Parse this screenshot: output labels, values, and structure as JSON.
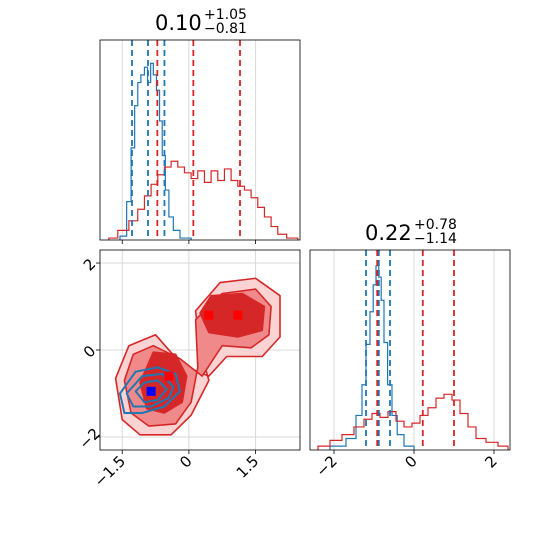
{
  "chart_data": [
    {
      "type": "histogram",
      "panel": "top-left",
      "title": {
        "value": "0.10",
        "plus": "+1.05",
        "minus": "−0.81"
      },
      "xlim": [
        -2.0,
        2.5
      ],
      "xticks": [
        -1.5,
        0.0,
        1.5
      ],
      "grid": true,
      "series": [
        {
          "color": "#1f77b4",
          "bins": [
            {
              "x0": -1.55,
              "x1": -1.4,
              "h": 0.02
            },
            {
              "x0": -1.4,
              "x1": -1.3,
              "h": 0.2
            },
            {
              "x0": -1.3,
              "x1": -1.22,
              "h": 0.48
            },
            {
              "x0": -1.22,
              "x1": -1.15,
              "h": 0.7
            },
            {
              "x0": -1.15,
              "x1": -1.08,
              "h": 0.82
            },
            {
              "x0": -1.08,
              "x1": -1.0,
              "h": 0.86
            },
            {
              "x0": -1.0,
              "x1": -0.93,
              "h": 0.9
            },
            {
              "x0": -0.93,
              "x1": -0.86,
              "h": 0.82
            },
            {
              "x0": -0.86,
              "x1": -0.8,
              "h": 0.92
            },
            {
              "x0": -0.8,
              "x1": -0.73,
              "h": 0.86
            },
            {
              "x0": -0.73,
              "x1": -0.66,
              "h": 0.78
            },
            {
              "x0": -0.66,
              "x1": -0.6,
              "h": 0.62
            },
            {
              "x0": -0.6,
              "x1": -0.53,
              "h": 0.44
            },
            {
              "x0": -0.53,
              "x1": -0.45,
              "h": 0.26
            },
            {
              "x0": -0.45,
              "x1": -0.35,
              "h": 0.12
            },
            {
              "x0": -0.35,
              "x1": -0.2,
              "h": 0.05
            },
            {
              "x0": -0.2,
              "x1": 0.05,
              "h": 0.01
            }
          ],
          "quantiles": [
            -1.28,
            -0.92,
            -0.55
          ]
        },
        {
          "color": "#d62728",
          "bins": [
            {
              "x0": -1.8,
              "x1": -1.6,
              "h": 0.01
            },
            {
              "x0": -1.6,
              "x1": -1.35,
              "h": 0.05
            },
            {
              "x0": -1.35,
              "x1": -1.15,
              "h": 0.1
            },
            {
              "x0": -1.15,
              "x1": -1.0,
              "h": 0.16
            },
            {
              "x0": -1.0,
              "x1": -0.85,
              "h": 0.23
            },
            {
              "x0": -0.85,
              "x1": -0.7,
              "h": 0.29
            },
            {
              "x0": -0.7,
              "x1": -0.55,
              "h": 0.34
            },
            {
              "x0": -0.55,
              "x1": -0.4,
              "h": 0.38
            },
            {
              "x0": -0.4,
              "x1": -0.25,
              "h": 0.41
            },
            {
              "x0": -0.25,
              "x1": -0.1,
              "h": 0.38
            },
            {
              "x0": -0.1,
              "x1": 0.05,
              "h": 0.35
            },
            {
              "x0": 0.05,
              "x1": 0.2,
              "h": 0.32
            },
            {
              "x0": 0.2,
              "x1": 0.35,
              "h": 0.36
            },
            {
              "x0": 0.35,
              "x1": 0.5,
              "h": 0.3
            },
            {
              "x0": 0.5,
              "x1": 0.65,
              "h": 0.36
            },
            {
              "x0": 0.65,
              "x1": 0.8,
              "h": 0.31
            },
            {
              "x0": 0.8,
              "x1": 0.95,
              "h": 0.37
            },
            {
              "x0": 0.95,
              "x1": 1.1,
              "h": 0.31
            },
            {
              "x0": 1.1,
              "x1": 1.25,
              "h": 0.28
            },
            {
              "x0": 1.25,
              "x1": 1.4,
              "h": 0.26
            },
            {
              "x0": 1.4,
              "x1": 1.55,
              "h": 0.22
            },
            {
              "x0": 1.55,
              "x1": 1.7,
              "h": 0.17
            },
            {
              "x0": 1.7,
              "x1": 1.85,
              "h": 0.12
            },
            {
              "x0": 1.85,
              "x1": 2.0,
              "h": 0.07
            },
            {
              "x0": 2.0,
              "x1": 2.2,
              "h": 0.03
            },
            {
              "x0": 2.2,
              "x1": 2.45,
              "h": 0.01
            }
          ],
          "quantiles": [
            -0.71,
            0.1,
            1.15
          ]
        }
      ]
    },
    {
      "type": "contour",
      "panel": "bottom-left",
      "xlim": [
        -2.0,
        2.5
      ],
      "ylim": [
        -2.3,
        2.3
      ],
      "xticks": [
        -1.5,
        0.0,
        1.5
      ],
      "yticks": [
        -2,
        0,
        2
      ],
      "grid": true,
      "series": [
        {
          "color": "#d62728",
          "filled_levels": [
            {
              "fill": "#fbd3d3",
              "stroke": "#d62728",
              "points": [
                [
                  -1.65,
                  -0.65
                ],
                [
                  -1.5,
                  -1.6
                ],
                [
                  -1.1,
                  -1.95
                ],
                [
                  -0.4,
                  -1.95
                ],
                [
                  0.05,
                  -1.5
                ],
                [
                  0.45,
                  -0.7
                ],
                [
                  0.25,
                  0.0
                ],
                [
                  0.15,
                  0.9
                ],
                [
                  0.7,
                  1.55
                ],
                [
                  1.5,
                  1.65
                ],
                [
                  2.05,
                  1.25
                ],
                [
                  2.05,
                  0.3
                ],
                [
                  1.65,
                  -0.15
                ],
                [
                  0.85,
                  -0.15
                ],
                [
                  0.45,
                  -0.6
                ],
                [
                  -0.15,
                  -0.35
                ],
                [
                  -0.75,
                  0.35
                ],
                [
                  -1.35,
                  0.1
                ]
              ]
            },
            {
              "fill": "#f08a8a",
              "stroke": "#d62728",
              "points": [
                [
                  -1.45,
                  -0.7
                ],
                [
                  -1.3,
                  -1.45
                ],
                [
                  -0.9,
                  -1.75
                ],
                [
                  -0.3,
                  -1.7
                ],
                [
                  0.05,
                  -1.2
                ],
                [
                  0.2,
                  -0.4
                ],
                [
                  0.15,
                  0.7
                ],
                [
                  0.75,
                  1.3
                ],
                [
                  1.5,
                  1.4
                ],
                [
                  1.85,
                  1.0
                ],
                [
                  1.8,
                  0.35
                ],
                [
                  1.4,
                  0.05
                ],
                [
                  0.75,
                  0.1
                ],
                [
                  0.3,
                  -0.6
                ],
                [
                  -0.2,
                  -0.2
                ],
                [
                  -0.8,
                  0.1
                ],
                [
                  -1.25,
                  -0.1
                ]
              ]
            },
            {
              "fill": "#d62728",
              "stroke": "#d62728",
              "points": [
                [
                  -1.1,
                  -0.75
                ],
                [
                  -0.95,
                  -1.35
                ],
                [
                  -0.55,
                  -1.45
                ],
                [
                  -0.15,
                  -1.2
                ],
                [
                  -0.05,
                  -0.6
                ],
                [
                  -0.3,
                  -0.1
                ],
                [
                  -0.8,
                  -0.05
                ]
              ]
            },
            {
              "fill": "#d62728",
              "stroke": "#d62728",
              "points": [
                [
                  0.25,
                  0.85
                ],
                [
                  0.5,
                  1.25
                ],
                [
                  1.2,
                  1.3
                ],
                [
                  1.7,
                  1.0
                ],
                [
                  1.65,
                  0.45
                ],
                [
                  1.1,
                  0.3
                ],
                [
                  0.45,
                  0.4
                ]
              ]
            }
          ],
          "markers": [
            [
              -0.45,
              -0.6
            ],
            [
              0.45,
              0.8
            ],
            [
              1.1,
              0.8
            ]
          ]
        },
        {
          "color": "#1f77b4",
          "contour_levels": [
            {
              "points": [
                [
                  -1.55,
                  -1.0
                ],
                [
                  -1.45,
                  -1.45
                ],
                [
                  -1.05,
                  -1.45
                ],
                [
                  -0.55,
                  -1.3
                ],
                [
                  -0.2,
                  -0.95
                ],
                [
                  -0.3,
                  -0.55
                ],
                [
                  -0.7,
                  -0.4
                ],
                [
                  -1.2,
                  -0.5
                ]
              ]
            },
            {
              "points": [
                [
                  -1.4,
                  -1.0
                ],
                [
                  -1.25,
                  -1.3
                ],
                [
                  -0.85,
                  -1.3
                ],
                [
                  -0.45,
                  -1.1
                ],
                [
                  -0.35,
                  -0.85
                ],
                [
                  -0.6,
                  -0.55
                ],
                [
                  -1.05,
                  -0.6
                ]
              ]
            },
            {
              "points": [
                [
                  -1.2,
                  -0.95
                ],
                [
                  -1.0,
                  -1.2
                ],
                [
                  -0.7,
                  -1.15
                ],
                [
                  -0.5,
                  -0.9
                ],
                [
                  -0.7,
                  -0.7
                ],
                [
                  -1.0,
                  -0.75
                ]
              ]
            }
          ],
          "markers": [
            [
              -0.85,
              -0.95
            ]
          ]
        }
      ]
    },
    {
      "type": "histogram",
      "panel": "bottom-right",
      "title": {
        "value": "0.22",
        "plus": "+0.78",
        "minus": "−1.14"
      },
      "xlim": [
        -2.6,
        2.4
      ],
      "xticks": [
        -2,
        0,
        2
      ],
      "grid": true,
      "series": [
        {
          "color": "#1f77b4",
          "bins": [
            {
              "x0": -2.1,
              "x1": -1.7,
              "h": 0.02
            },
            {
              "x0": -1.7,
              "x1": -1.45,
              "h": 0.06
            },
            {
              "x0": -1.45,
              "x1": -1.3,
              "h": 0.18
            },
            {
              "x0": -1.3,
              "x1": -1.2,
              "h": 0.34
            },
            {
              "x0": -1.2,
              "x1": -1.1,
              "h": 0.55
            },
            {
              "x0": -1.1,
              "x1": -1.02,
              "h": 0.72
            },
            {
              "x0": -1.02,
              "x1": -0.95,
              "h": 0.86
            },
            {
              "x0": -0.95,
              "x1": -0.88,
              "h": 0.96
            },
            {
              "x0": -0.88,
              "x1": -0.82,
              "h": 0.9
            },
            {
              "x0": -0.82,
              "x1": -0.75,
              "h": 0.78
            },
            {
              "x0": -0.75,
              "x1": -0.66,
              "h": 0.56
            },
            {
              "x0": -0.66,
              "x1": -0.55,
              "h": 0.34
            },
            {
              "x0": -0.55,
              "x1": -0.42,
              "h": 0.18
            },
            {
              "x0": -0.42,
              "x1": -0.25,
              "h": 0.08
            },
            {
              "x0": -0.25,
              "x1": 0.0,
              "h": 0.02
            }
          ],
          "quantiles": [
            -1.2,
            -0.88,
            -0.6
          ]
        },
        {
          "color": "#d62728",
          "bins": [
            {
              "x0": -2.4,
              "x1": -2.1,
              "h": 0.02
            },
            {
              "x0": -2.1,
              "x1": -1.8,
              "h": 0.05
            },
            {
              "x0": -1.8,
              "x1": -1.5,
              "h": 0.08
            },
            {
              "x0": -1.5,
              "x1": -1.25,
              "h": 0.12
            },
            {
              "x0": -1.25,
              "x1": -1.05,
              "h": 0.16
            },
            {
              "x0": -1.05,
              "x1": -0.85,
              "h": 0.19
            },
            {
              "x0": -0.85,
              "x1": -0.65,
              "h": 0.17
            },
            {
              "x0": -0.65,
              "x1": -0.45,
              "h": 0.2
            },
            {
              "x0": -0.45,
              "x1": -0.25,
              "h": 0.15
            },
            {
              "x0": -0.25,
              "x1": -0.05,
              "h": 0.12
            },
            {
              "x0": -0.05,
              "x1": 0.15,
              "h": 0.14
            },
            {
              "x0": 0.15,
              "x1": 0.35,
              "h": 0.18
            },
            {
              "x0": 0.35,
              "x1": 0.55,
              "h": 0.22
            },
            {
              "x0": 0.55,
              "x1": 0.75,
              "h": 0.27
            },
            {
              "x0": 0.75,
              "x1": 0.95,
              "h": 0.29
            },
            {
              "x0": 0.95,
              "x1": 1.15,
              "h": 0.26
            },
            {
              "x0": 1.15,
              "x1": 1.35,
              "h": 0.19
            },
            {
              "x0": 1.35,
              "x1": 1.55,
              "h": 0.12
            },
            {
              "x0": 1.55,
              "x1": 1.8,
              "h": 0.06
            },
            {
              "x0": 1.8,
              "x1": 2.1,
              "h": 0.04
            },
            {
              "x0": 2.1,
              "x1": 2.35,
              "h": 0.02
            }
          ],
          "quantiles": [
            -0.92,
            0.22,
            1.0
          ]
        }
      ]
    }
  ]
}
